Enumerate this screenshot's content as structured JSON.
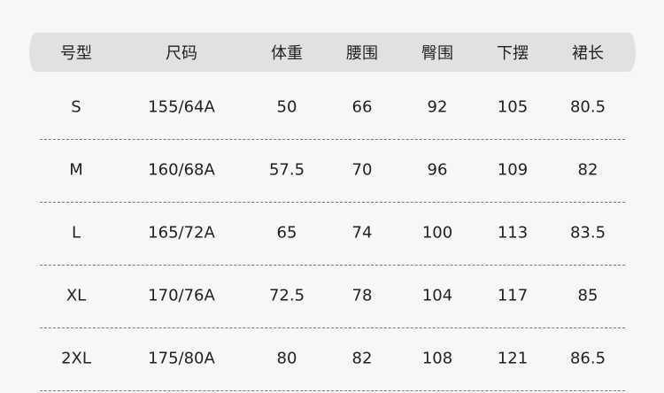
{
  "headers": [
    "号型",
    "尺码",
    "体重",
    "腰围",
    "臀围",
    "下摆",
    "裙长"
  ],
  "rows": [
    [
      "S",
      "155/64A",
      "50",
      "66",
      "92",
      "105",
      "80.5"
    ],
    [
      "M",
      "160/68A",
      "57.5",
      "70",
      "96",
      "109",
      "82"
    ],
    [
      "L",
      "165/72A",
      "65",
      "74",
      "100",
      "113",
      "83.5"
    ],
    [
      "XL",
      "170/76A",
      "72.5",
      "78",
      "104",
      "117",
      "85"
    ],
    [
      "2XL",
      "175/80A",
      "80",
      "82",
      "108",
      "121",
      "86.5"
    ]
  ]
}
